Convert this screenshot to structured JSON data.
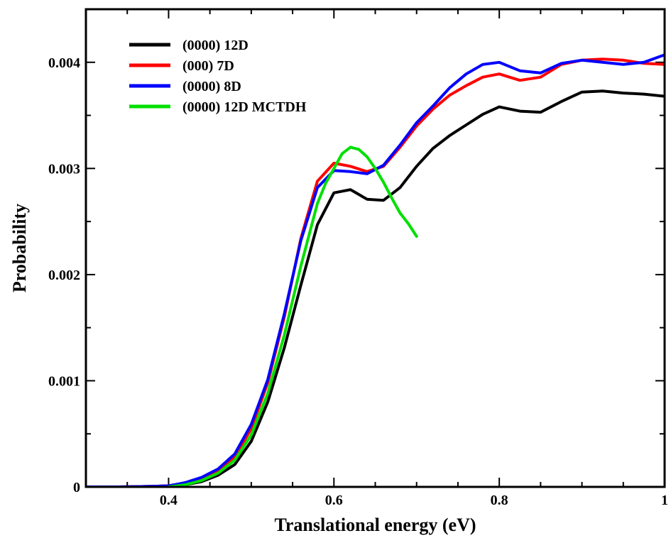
{
  "chart_data": {
    "type": "line",
    "title": "",
    "xlabel": "Translational energy (eV)",
    "ylabel": "Probability",
    "xlim": [
      0.3,
      1.0
    ],
    "ylim": [
      0,
      0.0045
    ],
    "x_ticks": [
      {
        "value": 0.4,
        "label": "0.4"
      },
      {
        "value": 0.6,
        "label": "0.6"
      },
      {
        "value": 0.8,
        "label": "0.8"
      },
      {
        "value": 1.0,
        "label": "1"
      }
    ],
    "y_ticks": [
      {
        "value": 0,
        "label": "0"
      },
      {
        "value": 0.001,
        "label": "0.001"
      },
      {
        "value": 0.002,
        "label": "0.002"
      },
      {
        "value": 0.003,
        "label": "0.003"
      },
      {
        "value": 0.004,
        "label": "0.004"
      }
    ],
    "grid": false,
    "legend_position": "top-left",
    "series": [
      {
        "name": "(0000) 12D",
        "color": "#000000",
        "x": [
          0.3,
          0.34,
          0.38,
          0.4,
          0.42,
          0.44,
          0.46,
          0.48,
          0.5,
          0.52,
          0.54,
          0.56,
          0.58,
          0.6,
          0.62,
          0.64,
          0.66,
          0.68,
          0.7,
          0.72,
          0.74,
          0.76,
          0.78,
          0.8,
          0.825,
          0.85,
          0.875,
          0.9,
          0.925,
          0.95,
          0.975,
          1.0
        ],
        "y": [
          0.0,
          0.0,
          5e-06,
          1e-05,
          2e-05,
          5e-05,
          0.00011,
          0.00021,
          0.00043,
          0.0008,
          0.00131,
          0.0019,
          0.00247,
          0.00277,
          0.0028,
          0.00271,
          0.0027,
          0.00282,
          0.00302,
          0.00319,
          0.00331,
          0.00341,
          0.00351,
          0.00358,
          0.00354,
          0.00353,
          0.00363,
          0.00372,
          0.00373,
          0.00371,
          0.0037,
          0.00368
        ]
      },
      {
        "name": "(000) 7D",
        "color": "#ff0000",
        "x": [
          0.3,
          0.34,
          0.38,
          0.4,
          0.42,
          0.44,
          0.46,
          0.48,
          0.5,
          0.52,
          0.54,
          0.56,
          0.58,
          0.6,
          0.62,
          0.64,
          0.66,
          0.68,
          0.7,
          0.72,
          0.74,
          0.76,
          0.78,
          0.8,
          0.825,
          0.85,
          0.875,
          0.9,
          0.925,
          0.95,
          0.975,
          1.0
        ],
        "y": [
          0.0,
          0.0,
          5e-06,
          1e-05,
          3e-05,
          7e-05,
          0.00015,
          0.00028,
          0.00055,
          0.00098,
          0.0016,
          0.00234,
          0.00288,
          0.00305,
          0.00302,
          0.00297,
          0.00302,
          0.0032,
          0.0034,
          0.00356,
          0.00369,
          0.00378,
          0.00386,
          0.00389,
          0.00383,
          0.00386,
          0.00398,
          0.00402,
          0.00403,
          0.00402,
          0.00399,
          0.00398
        ]
      },
      {
        "name": "(0000) 8D",
        "color": "#0000ff",
        "x": [
          0.3,
          0.34,
          0.38,
          0.4,
          0.42,
          0.44,
          0.46,
          0.48,
          0.5,
          0.52,
          0.54,
          0.56,
          0.58,
          0.6,
          0.62,
          0.64,
          0.66,
          0.68,
          0.7,
          0.72,
          0.74,
          0.76,
          0.78,
          0.8,
          0.825,
          0.85,
          0.875,
          0.9,
          0.925,
          0.95,
          0.975,
          1.0
        ],
        "y": [
          0.0,
          0.0,
          5e-06,
          1e-05,
          4e-05,
          9e-05,
          0.00017,
          0.00031,
          0.00059,
          0.00101,
          0.00163,
          0.00232,
          0.00282,
          0.00298,
          0.00297,
          0.00295,
          0.00303,
          0.00322,
          0.00343,
          0.00359,
          0.00376,
          0.00389,
          0.00398,
          0.004,
          0.00392,
          0.0039,
          0.00399,
          0.00402,
          0.004,
          0.00398,
          0.004,
          0.00407
        ]
      },
      {
        "name": "(0000) 12D MCTDH",
        "color": "#00e000",
        "x": [
          0.4,
          0.42,
          0.44,
          0.46,
          0.48,
          0.5,
          0.52,
          0.54,
          0.56,
          0.58,
          0.59,
          0.6,
          0.61,
          0.62,
          0.63,
          0.64,
          0.65,
          0.66,
          0.67,
          0.68,
          0.69,
          0.7
        ],
        "y": [
          0.0,
          2e-05,
          6e-05,
          0.00013,
          0.00025,
          0.00049,
          0.00088,
          0.00143,
          0.00208,
          0.00267,
          0.00286,
          0.003,
          0.00314,
          0.0032,
          0.00318,
          0.00311,
          0.003,
          0.00287,
          0.00272,
          0.00258,
          0.00248,
          0.00236
        ]
      }
    ]
  }
}
